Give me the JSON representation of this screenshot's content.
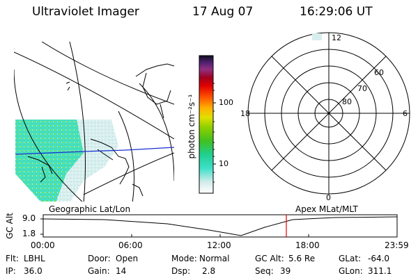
{
  "header": {
    "instrument": "Ultraviolet Imager",
    "date": "17 Aug 07",
    "time": "16:29:06 UT"
  },
  "colorbar": {
    "unit_label": "photon cm⁻²s⁻¹",
    "ticks": [
      "100",
      "10"
    ]
  },
  "polar_plot": {
    "mlt_labels": [
      "12",
      "18",
      "6",
      "0"
    ],
    "lat_labels": [
      "60",
      "70",
      "80"
    ]
  },
  "map_labels": {
    "left_caption": "Geographic Lat/Lon",
    "right_caption": "Apex MLat/MLT"
  },
  "altitude_plot": {
    "axis_title": "GC Alt",
    "y_ticks": [
      "9.0",
      "1.8"
    ],
    "x_ticks": [
      "00:00",
      "06:00",
      "12:00",
      "18:00",
      "23:59"
    ]
  },
  "status": {
    "row1": [
      {
        "label": "Flt:",
        "value": "LBHL"
      },
      {
        "label": "Door:",
        "value": "Open"
      },
      {
        "label": "Mode:",
        "value": "Normal"
      },
      {
        "label": "GC Alt:",
        "value": "5.6 Re"
      },
      {
        "label": "GLat:",
        "value": "-64.0"
      }
    ],
    "row2": [
      {
        "label": "IP:",
        "value": "36.0"
      },
      {
        "label": "Gain:",
        "value": "14"
      },
      {
        "label": "Dsp:",
        "value": "2.8"
      },
      {
        "label": "Seq:",
        "value": "39"
      },
      {
        "label": "GLon:",
        "value": "311.1"
      }
    ]
  },
  "colors": {
    "orbit_marker": "#e00000",
    "lat_line": "#1a2fd0"
  }
}
